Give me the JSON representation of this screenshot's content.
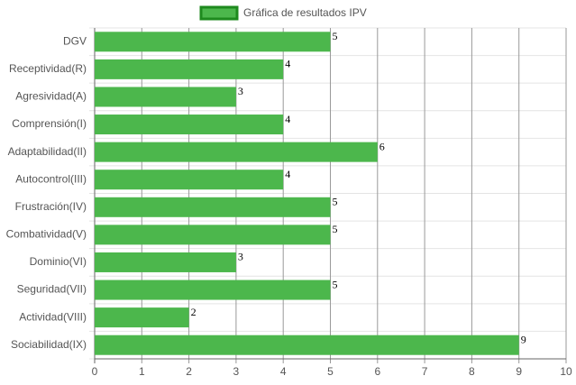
{
  "chart_data": {
    "type": "bar",
    "orientation": "horizontal",
    "categories": [
      "DGV",
      "Receptividad(R)",
      "Agresividad(A)",
      "Comprensión(I)",
      "Adaptabilidad(II)",
      "Autocontrol(III)",
      "Frustración(IV)",
      "Combatividad(V)",
      "Dominio(VI)",
      "Seguridad(VII)",
      "Actividad(VIII)",
      "Sociabilidad(IX)"
    ],
    "series": [
      {
        "name": "Gráfica de resultados IPV",
        "color": "#4cb74c",
        "values": [
          5,
          4,
          3,
          4,
          6,
          4,
          5,
          5,
          3,
          5,
          2,
          9
        ]
      }
    ],
    "xlim": [
      0,
      10
    ],
    "xticks": [
      0,
      1,
      2,
      3,
      4,
      5,
      6,
      7,
      8,
      9,
      10
    ],
    "grid": true,
    "legend": "top"
  }
}
